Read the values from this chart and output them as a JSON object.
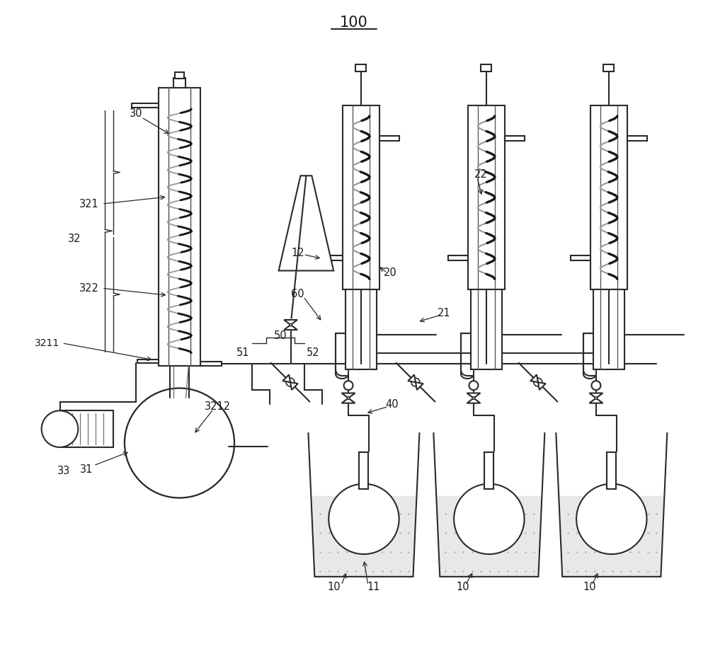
{
  "title": "100",
  "bg": "#ffffff",
  "lc": "#2a2a2a",
  "lw": 1.5,
  "fig_w": 10.0,
  "fig_h": 9.27,
  "dpi": 100,
  "coil_color": "#1a1a1a",
  "coil_back_color": "#999999"
}
